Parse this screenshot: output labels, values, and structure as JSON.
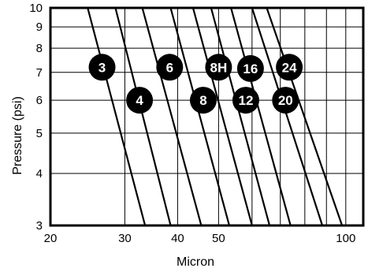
{
  "chart_data": {
    "type": "line",
    "xlabel": "Micron",
    "ylabel": "Pressure (psi)",
    "x_scale": "log",
    "y_scale": "log",
    "xlim": [
      20,
      110
    ],
    "ylim": [
      3,
      10
    ],
    "grid": true,
    "x_ticks": [
      20,
      30,
      40,
      50,
      100
    ],
    "x_tick_labels": [
      "20",
      "30",
      "40",
      "50",
      "100"
    ],
    "y_ticks": [
      3,
      4,
      5,
      6,
      7,
      8,
      9,
      10
    ],
    "y_tick_labels": [
      "3",
      "4",
      "5",
      "6",
      "7",
      "8",
      "9",
      "10"
    ],
    "x_minor_grid": [
      60,
      70,
      80,
      90
    ],
    "series": [
      {
        "name": "3",
        "points": [
          [
            24.5,
            10
          ],
          [
            33.5,
            3
          ]
        ],
        "label_at": [
          26.5,
          7.2
        ]
      },
      {
        "name": "4",
        "points": [
          [
            28.5,
            10
          ],
          [
            38.5,
            3
          ]
        ],
        "label_at": [
          32.5,
          6.0
        ]
      },
      {
        "name": "6",
        "points": [
          [
            33.0,
            10
          ],
          [
            45.5,
            3
          ]
        ],
        "label_at": [
          38.3,
          7.2
        ]
      },
      {
        "name": "8",
        "points": [
          [
            38.5,
            10
          ],
          [
            53.0,
            3
          ]
        ],
        "label_at": [
          46.0,
          6.0
        ]
      },
      {
        "name": "8H",
        "points": [
          [
            43.5,
            10
          ],
          [
            60.0,
            3
          ]
        ],
        "label_at": [
          50.0,
          7.2
        ]
      },
      {
        "name": "12",
        "points": [
          [
            48.0,
            10
          ],
          [
            66.0,
            3
          ]
        ],
        "label_at": [
          58.0,
          6.0
        ]
      },
      {
        "name": "16",
        "points": [
          [
            53.5,
            10
          ],
          [
            74.0,
            3
          ]
        ],
        "label_at": [
          59.5,
          7.15
        ]
      },
      {
        "name": "20",
        "points": [
          [
            60.0,
            10
          ],
          [
            88.0,
            3
          ]
        ],
        "label_at": [
          72.0,
          6.0
        ]
      },
      {
        "name": "24",
        "points": [
          [
            65.0,
            10
          ],
          [
            98.0,
            3
          ]
        ],
        "label_at": [
          73.5,
          7.2
        ]
      }
    ]
  }
}
